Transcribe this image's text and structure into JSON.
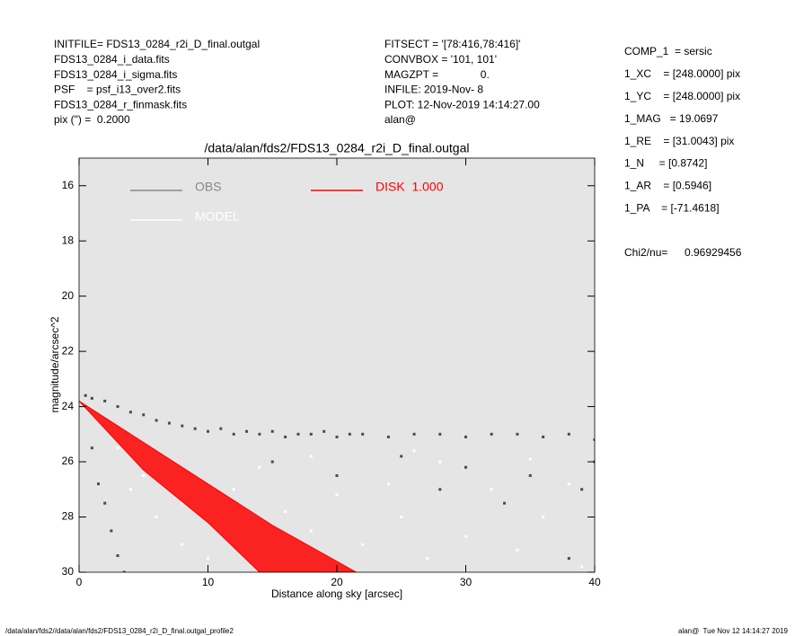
{
  "header": {
    "left": [
      "INITFILE= FDS13_0284_r2i_D_final.outgal",
      "FDS13_0284_i_data.fits",
      "FDS13_0284_i_sigma.fits",
      "PSF    = psf_i13_over2.fits",
      "FDS13_0284_r_finmask.fits",
      "pix (\") =  0.2000"
    ],
    "middle": [
      "FITSECT = '[78:416,78:416]'",
      "CONVBOX = '101, 101'",
      "MAGZPT =              0.",
      "INFILE: 2019-Nov- 8",
      "PLOT: 12-Nov-2019 14:14:27.00",
      "alan@"
    ],
    "right": [
      "COMP_1  = sersic",
      "1_XC    = [248.0000] pix",
      "1_YC    = [248.0000] pix",
      "1_MAG   = 19.0697",
      "1_RE    = [31.0043] pix",
      "1_N     = [0.8742]",
      "1_AR    = [0.5946]",
      "1_PA    = [-71.4618]"
    ],
    "chi2_label": "Chi2/nu=",
    "chi2_value": "0.96929456"
  },
  "footer": {
    "left": "/data/alan/fds2//data/alan/fds2/FDS13_0284_r2i_D_final.outgal_profile2",
    "right": "alan@  Tue Nov 12 14:14:27 2019"
  },
  "chart_data": {
    "type": "scatter",
    "title": "/data/alan/fds2/FDS13_0284_r2i_D_final.outgal",
    "x_label": "Distance along sky [arcsec]",
    "y_label": "magnitude/arcsec^2",
    "xlim": [
      0,
      40
    ],
    "ylim": [
      15,
      30
    ],
    "y_inverted": true,
    "xticks": [
      0,
      10,
      20,
      30,
      40
    ],
    "yticks": [
      16,
      18,
      20,
      22,
      24,
      26,
      28,
      30
    ],
    "background": "#e5e5e5",
    "series": [
      {
        "name": "OBS",
        "color": "#4a4a4a",
        "kind": "points",
        "x": [
          0.5,
          1,
          2,
          3,
          4,
          5,
          6,
          7,
          8,
          9,
          10,
          11,
          12,
          13,
          14,
          15,
          16,
          17,
          18,
          19,
          20,
          21,
          22,
          24,
          26,
          28,
          30,
          32,
          34,
          36,
          38,
          40,
          1,
          1.5,
          2,
          2.5,
          3,
          3.5,
          38,
          39,
          40,
          15,
          20,
          25,
          30,
          35,
          28,
          33
        ],
        "values": [
          23.6,
          23.7,
          23.8,
          24.0,
          24.2,
          24.3,
          24.5,
          24.6,
          24.7,
          24.8,
          24.9,
          24.8,
          25.0,
          24.9,
          25.0,
          24.9,
          25.1,
          25.0,
          25.0,
          24.9,
          25.1,
          25.0,
          25.0,
          25.1,
          25.0,
          25.0,
          25.1,
          25.0,
          25.0,
          25.1,
          25.0,
          25.2,
          25.5,
          26.8,
          27.5,
          28.5,
          29.4,
          30.0,
          29.5,
          27.0,
          26.0,
          26.0,
          26.5,
          25.8,
          26.2,
          26.5,
          27.0,
          27.5
        ]
      },
      {
        "name": "MODEL",
        "color": "#ffffff",
        "kind": "points",
        "x": [
          3,
          5,
          6,
          8,
          8,
          10,
          12,
          14,
          16,
          18,
          20,
          22,
          24,
          25,
          27,
          28,
          30,
          32,
          34,
          36,
          38,
          39,
          18,
          26,
          35,
          4,
          7,
          11
        ],
        "values": [
          25.5,
          26.5,
          28.0,
          27.5,
          29.0,
          29.5,
          27.0,
          26.2,
          27.8,
          28.5,
          27.2,
          29.0,
          26.8,
          28.0,
          29.5,
          26.0,
          28.7,
          27.0,
          29.2,
          28.0,
          26.8,
          29.8,
          25.8,
          25.6,
          25.9,
          27.0,
          26.0,
          28.5
        ]
      },
      {
        "name": "DISK  1.000",
        "color": "#ff0000",
        "kind": "area",
        "x": [
          0,
          5,
          10,
          15,
          21.5,
          14,
          10,
          5,
          0
        ],
        "values": [
          23.8,
          25.3,
          26.8,
          28.3,
          30.0,
          30.0,
          28.2,
          26.3,
          23.8
        ]
      }
    ]
  }
}
